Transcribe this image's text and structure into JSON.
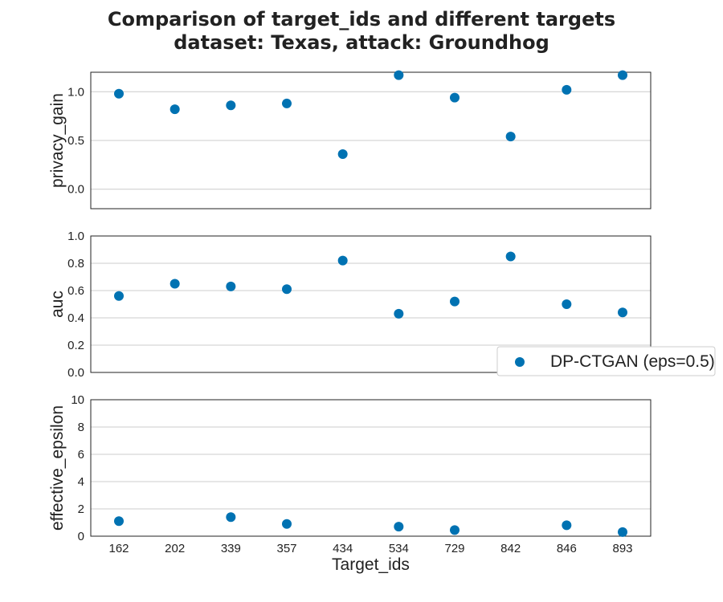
{
  "title_lines": [
    "Comparison of target_ids and different targets",
    "dataset: Texas, attack: Groundhog"
  ],
  "chart_data": {
    "type": "scatter",
    "title": "Comparison of target_ids and different targets\ndataset: Texas, attack: Groundhog",
    "xlabel": "Target_ids",
    "categories": [
      "162",
      "202",
      "339",
      "357",
      "434",
      "534",
      "729",
      "842",
      "846",
      "893"
    ],
    "legend": {
      "placement": "right",
      "entries": [
        "DP-CTGAN (eps=0.5)"
      ]
    },
    "colors": {
      "series": "#0072b2",
      "grid": "#cccccc",
      "axes": "#222222"
    },
    "grid": true,
    "subplots": [
      {
        "ylabel": "privacy_gain",
        "ylim": [
          -0.2,
          1.2
        ],
        "yticks": [
          "0.0",
          "0.5",
          "1.0"
        ],
        "series": [
          {
            "name": "DP-CTGAN (eps=0.5)",
            "values": [
              0.98,
              0.82,
              0.86,
              0.88,
              0.36,
              1.17,
              0.94,
              0.54,
              1.02,
              1.17
            ]
          }
        ]
      },
      {
        "ylabel": "auc",
        "ylim": [
          0.0,
          1.0
        ],
        "yticks": [
          "0.0",
          "0.2",
          "0.4",
          "0.6",
          "0.8",
          "1.0"
        ],
        "series": [
          {
            "name": "DP-CTGAN (eps=0.5)",
            "values": [
              0.56,
              0.65,
              0.63,
              0.61,
              0.82,
              0.43,
              0.52,
              0.85,
              0.5,
              0.44
            ]
          }
        ]
      },
      {
        "ylabel": "effective_epsilon",
        "ylim": [
          0,
          10
        ],
        "yticks": [
          "0",
          "2",
          "4",
          "6",
          "8",
          "10"
        ],
        "series": [
          {
            "name": "DP-CTGAN (eps=0.5)",
            "values": [
              1.1,
              null,
              1.4,
              0.9,
              null,
              0.7,
              0.45,
              null,
              0.8,
              0.3
            ]
          }
        ]
      }
    ]
  }
}
